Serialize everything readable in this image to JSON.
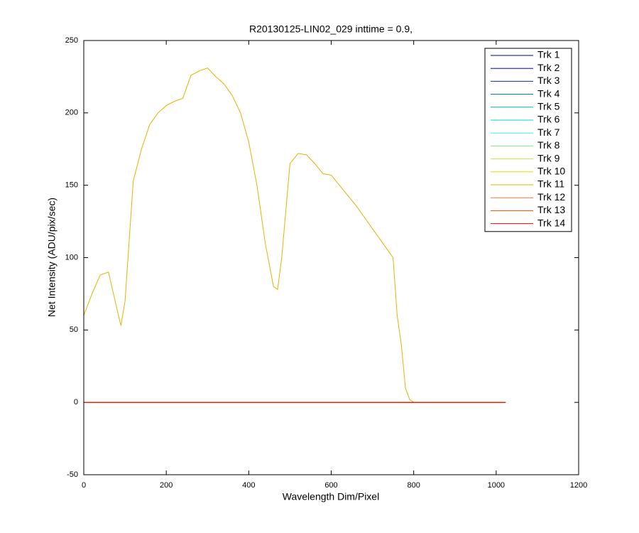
{
  "chart_data": {
    "type": "line",
    "title": "R20130125-LIN02_029 inttime = 0.9,",
    "xlabel": "Wavelength Dim/Pixel",
    "ylabel": "Net Intensity (ADU/pix/sec)",
    "xlim": [
      0,
      1200
    ],
    "xticks": [
      0,
      200,
      400,
      600,
      800,
      1000,
      1200
    ],
    "ylim": [
      -50,
      250
    ],
    "yticks": [
      -50,
      0,
      50,
      100,
      150,
      200,
      250
    ],
    "legend": "northeast",
    "x": [
      0,
      20,
      40,
      60,
      80,
      90,
      100,
      120,
      140,
      160,
      180,
      200,
      220,
      240,
      260,
      280,
      300,
      320,
      340,
      360,
      380,
      400,
      420,
      440,
      460,
      470,
      480,
      500,
      520,
      540,
      560,
      580,
      600,
      620,
      640,
      660,
      680,
      700,
      720,
      740,
      750,
      760,
      770,
      780,
      790,
      800,
      850,
      900,
      950,
      1000,
      1023
    ],
    "series": [
      {
        "name": "Trk 1",
        "color": "#00008f",
        "values": [
          0,
          0,
          0,
          0,
          0,
          0,
          0,
          0,
          0,
          0,
          0,
          0,
          0,
          0,
          0,
          0,
          0,
          0,
          0,
          0,
          0,
          0,
          0,
          0,
          0,
          0,
          0,
          0,
          0,
          0,
          0,
          0,
          0,
          0,
          0,
          0,
          0,
          0,
          0,
          0,
          0,
          0,
          0,
          0,
          0,
          0,
          0,
          0,
          0,
          0,
          0
        ]
      },
      {
        "name": "Trk 2",
        "color": "#0000cf",
        "values": [
          0,
          0,
          0,
          0,
          0,
          0,
          0,
          0,
          0,
          0,
          0,
          0,
          0,
          0,
          0,
          0,
          0,
          0,
          0,
          0,
          0,
          0,
          0,
          0,
          0,
          0,
          0,
          0,
          0,
          0,
          0,
          0,
          0,
          0,
          0,
          0,
          0,
          0,
          0,
          0,
          0,
          0,
          0,
          0,
          0,
          0,
          0,
          0,
          0,
          0,
          0
        ]
      },
      {
        "name": "Trk 3",
        "color": "#0030a0",
        "values": [
          0,
          0,
          0,
          0,
          0,
          0,
          0,
          0,
          0,
          0,
          0,
          0,
          0,
          0,
          0,
          0,
          0,
          0,
          0,
          0,
          0,
          0,
          0,
          0,
          0,
          0,
          0,
          0,
          0,
          0,
          0,
          0,
          0,
          0,
          0,
          0,
          0,
          0,
          0,
          0,
          0,
          0,
          0,
          0,
          0,
          0,
          0,
          0,
          0,
          0,
          0
        ]
      },
      {
        "name": "Trk 4",
        "color": "#007090",
        "values": [
          0,
          0,
          0,
          0,
          0,
          0,
          0,
          0,
          0,
          0,
          0,
          0,
          0,
          0,
          0,
          0,
          0,
          0,
          0,
          0,
          0,
          0,
          0,
          0,
          0,
          0,
          0,
          0,
          0,
          0,
          0,
          0,
          0,
          0,
          0,
          0,
          0,
          0,
          0,
          0,
          0,
          0,
          0,
          0,
          0,
          0,
          0,
          0,
          0,
          0,
          0
        ]
      },
      {
        "name": "Trk 5",
        "color": "#00b0c0",
        "values": [
          0,
          0,
          0,
          0,
          0,
          0,
          0,
          0,
          0,
          0,
          0,
          0,
          0,
          0,
          0,
          0,
          0,
          0,
          0,
          0,
          0,
          0,
          0,
          0,
          0,
          0,
          0,
          0,
          0,
          0,
          0,
          0,
          0,
          0,
          0,
          0,
          0,
          0,
          0,
          0,
          0,
          0,
          0,
          0,
          0,
          0,
          0,
          0,
          0,
          0,
          0
        ]
      },
      {
        "name": "Trk 6",
        "color": "#00d8e0",
        "values": [
          0,
          0,
          0,
          0,
          0,
          0,
          0,
          0,
          0,
          0,
          0,
          0,
          0,
          0,
          0,
          0,
          0,
          0,
          0,
          0,
          0,
          0,
          0,
          0,
          0,
          0,
          0,
          0,
          0,
          0,
          0,
          0,
          0,
          0,
          0,
          0,
          0,
          0,
          0,
          0,
          0,
          0,
          0,
          0,
          0,
          0,
          0,
          0,
          0,
          0,
          0
        ]
      },
      {
        "name": "Trk 7",
        "color": "#40f0e0",
        "values": [
          0,
          0,
          0,
          0,
          0,
          0,
          0,
          0,
          0,
          0,
          0,
          0,
          0,
          0,
          0,
          0,
          0,
          0,
          0,
          0,
          0,
          0,
          0,
          0,
          0,
          0,
          0,
          0,
          0,
          0,
          0,
          0,
          0,
          0,
          0,
          0,
          0,
          0,
          0,
          0,
          0,
          0,
          0,
          0,
          0,
          0,
          0,
          0,
          0,
          0,
          0
        ]
      },
      {
        "name": "Trk 8",
        "color": "#80e880",
        "values": [
          0,
          0,
          0,
          0,
          0,
          0,
          0,
          0,
          0,
          0,
          0,
          0,
          0,
          0,
          0,
          0,
          0,
          0,
          0,
          0,
          0,
          0,
          0,
          0,
          0,
          0,
          0,
          0,
          0,
          0,
          0,
          0,
          0,
          0,
          0,
          0,
          0,
          0,
          0,
          0,
          0,
          0,
          0,
          0,
          0,
          0,
          0,
          0,
          0,
          0,
          0
        ]
      },
      {
        "name": "Trk 9",
        "color": "#c0e840",
        "values": [
          0,
          0,
          0,
          0,
          0,
          0,
          0,
          0,
          0,
          0,
          0,
          0,
          0,
          0,
          0,
          0,
          0,
          0,
          0,
          0,
          0,
          0,
          0,
          0,
          0,
          0,
          0,
          0,
          0,
          0,
          0,
          0,
          0,
          0,
          0,
          0,
          0,
          0,
          0,
          0,
          0,
          0,
          0,
          0,
          0,
          0,
          0,
          0,
          0,
          0,
          0
        ]
      },
      {
        "name": "Trk 10",
        "color": "#e0e000",
        "values": [
          0,
          0,
          0,
          0,
          0,
          0,
          0,
          0,
          0,
          0,
          0,
          0,
          0,
          0,
          0,
          0,
          0,
          0,
          0,
          0,
          0,
          0,
          0,
          0,
          0,
          0,
          0,
          0,
          0,
          0,
          0,
          0,
          0,
          0,
          0,
          0,
          0,
          0,
          0,
          0,
          0,
          0,
          0,
          0,
          0,
          0,
          0,
          0,
          0,
          0,
          0
        ]
      },
      {
        "name": "Trk 11",
        "color": "#e8b000",
        "values": [
          60,
          75,
          88,
          90,
          65,
          53,
          70,
          153,
          175,
          192,
          200,
          205,
          208,
          210,
          226,
          229,
          231,
          225,
          220,
          212,
          200,
          180,
          150,
          110,
          80,
          78,
          100,
          165,
          172,
          171,
          165,
          158,
          157,
          150,
          143,
          136,
          128,
          120,
          112,
          104,
          100,
          60,
          40,
          10,
          2,
          0,
          0,
          0,
          0,
          0,
          0
        ]
      },
      {
        "name": "Trk 12",
        "color": "#ff7030",
        "values": [
          0,
          0,
          0,
          0,
          0,
          0,
          0,
          0,
          0,
          0,
          0,
          0,
          0,
          0,
          0,
          0,
          0,
          0,
          0,
          0,
          0,
          0,
          0,
          0,
          0,
          0,
          0,
          0,
          0,
          0,
          0,
          0,
          0,
          0,
          0,
          0,
          0,
          0,
          0,
          0,
          0,
          0,
          0,
          0,
          0,
          0,
          0,
          0,
          0,
          0,
          0
        ]
      },
      {
        "name": "Trk 13",
        "color": "#ff4000",
        "values": [
          0,
          0,
          0,
          0,
          0,
          0,
          0,
          0,
          0,
          0,
          0,
          0,
          0,
          0,
          0,
          0,
          0,
          0,
          0,
          0,
          0,
          0,
          0,
          0,
          0,
          0,
          0,
          0,
          0,
          0,
          0,
          0,
          0,
          0,
          0,
          0,
          0,
          0,
          0,
          0,
          0,
          0,
          0,
          0,
          0,
          0,
          0,
          0,
          0,
          0,
          0
        ]
      },
      {
        "name": "Trk 14",
        "color": "#ee0000",
        "values": [
          0,
          0,
          0,
          0,
          0,
          0,
          0,
          0,
          0,
          0,
          0,
          0,
          0,
          0,
          0,
          0,
          0,
          0,
          0,
          0,
          0,
          0,
          0,
          0,
          0,
          0,
          0,
          0,
          0,
          0,
          0,
          0,
          0,
          0,
          0,
          0,
          0,
          0,
          0,
          0,
          0,
          0,
          0,
          0,
          0,
          0,
          0,
          0,
          0,
          0,
          0
        ]
      }
    ]
  }
}
